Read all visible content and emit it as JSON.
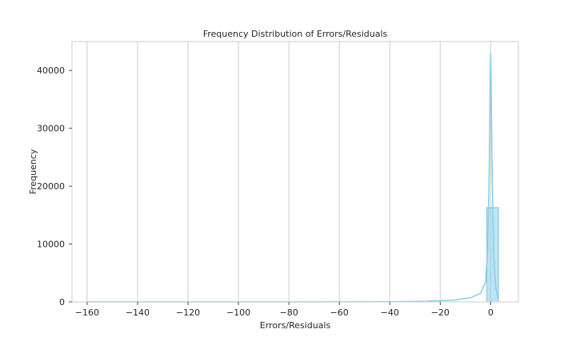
{
  "chart_data": {
    "type": "bar",
    "title": "Frequency Distribution of Errors/Residuals",
    "xlabel": "Errors/Residuals",
    "ylabel": "Frequency",
    "xlim": [
      -166,
      11
    ],
    "ylim": [
      0,
      45000
    ],
    "xticks": [
      -160,
      -140,
      -120,
      -100,
      -80,
      -60,
      -40,
      -20,
      0
    ],
    "xtick_labels": [
      "−160",
      "−140",
      "−120",
      "−100",
      "−80",
      "−60",
      "−40",
      "−20",
      "0"
    ],
    "yticks": [
      0,
      10000,
      20000,
      30000,
      40000
    ],
    "ytick_labels": [
      "0",
      "10000",
      "20000",
      "30000",
      "40000"
    ],
    "grid": "x",
    "histogram": {
      "bins": [
        {
          "x0": -1.5,
          "x1": 3.1,
          "count": 16300
        }
      ],
      "other_bins_count": 0
    },
    "kde": {
      "x": [
        -160,
        -120,
        -80,
        -40,
        -25,
        -15,
        -8,
        -4,
        -2,
        -1.2,
        -0.6,
        -0.2,
        0.0,
        0.2,
        0.6,
        1.2,
        2.0,
        3.1
      ],
      "y": [
        0,
        0,
        0,
        40,
        120,
        300,
        700,
        1500,
        3500,
        9000,
        22000,
        38000,
        43000,
        38000,
        22000,
        8000,
        2500,
        300
      ]
    },
    "colors": {
      "bar_fill": "#87ceeb",
      "bar_edge": "#6cb6d6",
      "kde_line": "#87ceeb",
      "grid": "#cccccc",
      "frame": "#cccccc",
      "text": "#262626"
    }
  }
}
